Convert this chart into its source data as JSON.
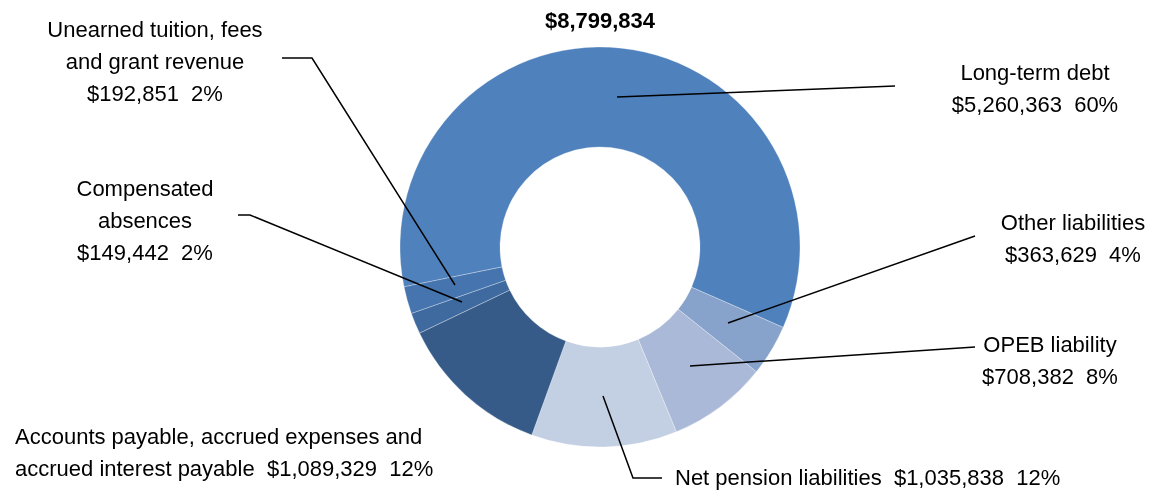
{
  "chart_data": {
    "type": "donut",
    "title": "$8,799,834",
    "categories": [
      "Long-term debt",
      "Other liabilities",
      "OPEB liability",
      "Net pension liabilities",
      "Accounts payable, accrued expenses and accrued interest payable",
      "Compensated absences",
      "Unearned tuition, fees and grant revenue"
    ],
    "values": [
      5260363,
      363629,
      708382,
      1035838,
      1089329,
      149442,
      192851
    ],
    "colors": [
      "#4f81bd",
      "#87a2cb",
      "#a9b9d7",
      "#c3cfe3",
      "#365b88",
      "#3f6aa0",
      "#4574ae"
    ],
    "value_labels": [
      "$5,260,363  60%",
      "$363,629  4%",
      "$708,382  8%",
      "$1,035,838  12%",
      "$1,089,329  12%",
      "$149,442  2%",
      "$192,851  2%"
    ]
  }
}
